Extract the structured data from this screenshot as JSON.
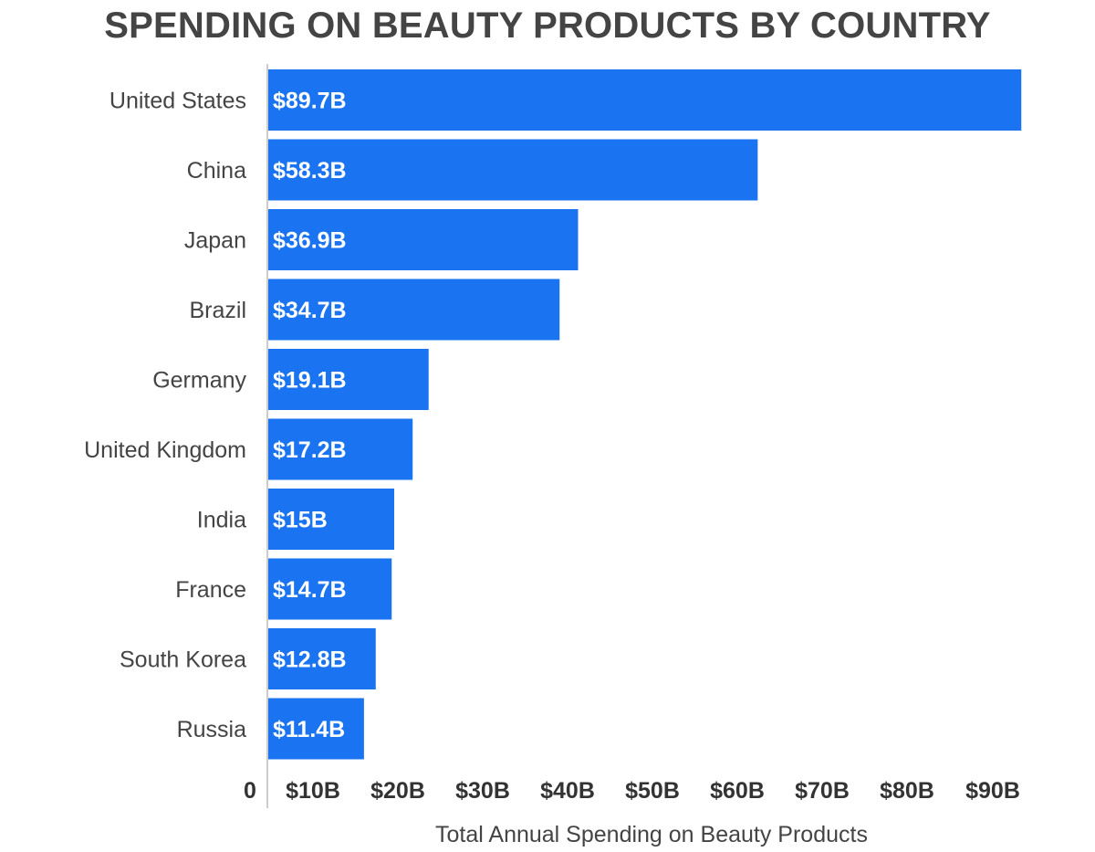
{
  "chart_data": {
    "type": "bar",
    "orientation": "horizontal",
    "title": "SPENDING ON BEAUTY PRODUCTS BY COUNTRY",
    "xlabel": "Total Annual Spending on Beauty Products",
    "ylabel": "",
    "categories": [
      "United States",
      "China",
      "Japan",
      "Brazil",
      "Germany",
      "United Kingdom",
      "India",
      "France",
      "South Korea",
      "Russia"
    ],
    "values": [
      89.7,
      58.3,
      36.9,
      34.7,
      19.1,
      17.2,
      15,
      14.7,
      12.8,
      11.4
    ],
    "value_labels": [
      "$89.7B",
      "$58.3B",
      "$36.9B",
      "$34.7B",
      "$19.1B",
      "$17.2B",
      "$15B",
      "$14.7B",
      "$12.8B",
      "$11.4B"
    ],
    "xlim": [
      0,
      90
    ],
    "x_ticks": [
      0,
      10,
      20,
      30,
      40,
      50,
      60,
      70,
      80,
      90
    ],
    "x_tick_labels": [
      "0",
      "$10B",
      "$20B",
      "$30B",
      "$40B",
      "$50B",
      "$60B",
      "$70B",
      "$80B",
      "$90B"
    ],
    "grid": false,
    "colors": {
      "bar": "#1a73f0",
      "axis": "#cccccc"
    }
  }
}
